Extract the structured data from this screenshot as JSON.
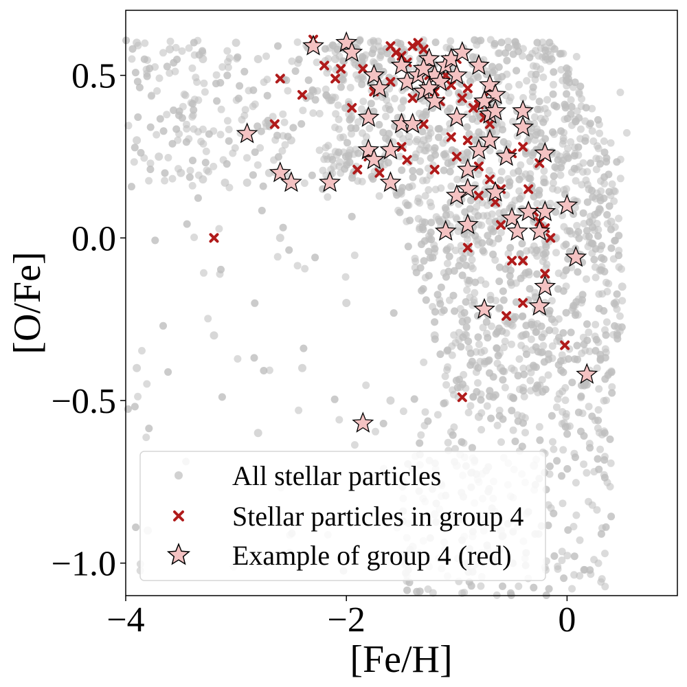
{
  "chart_data": {
    "type": "scatter",
    "title": "",
    "xlabel": "[Fe/H]",
    "ylabel": "[O/Fe]",
    "xlim": [
      -4,
      1
    ],
    "ylim": [
      -1.1,
      0.7
    ],
    "x_ticks": [
      {
        "value": -4,
        "label": "−4"
      },
      {
        "value": -2,
        "label": "−2"
      },
      {
        "value": 0,
        "label": "0"
      }
    ],
    "y_ticks": [
      {
        "value": 0.5,
        "label": "0.5"
      },
      {
        "value": 0.0,
        "label": "0.0"
      },
      {
        "value": -0.5,
        "label": "−0.5"
      },
      {
        "value": -1.0,
        "label": "−1.0"
      }
    ],
    "grid": false,
    "legend_position": "lower-left",
    "colors": {
      "background_points": "#bdbdbd",
      "group_points": "#b01b1b",
      "example_star_fill": "#f4c2c2",
      "example_star_edge": "#000000"
    },
    "series": [
      {
        "name": "All stellar particles",
        "marker": "circle",
        "color": "#bdbdbd",
        "representative_points": [
          [
            -3.9,
            0.6
          ],
          [
            -3.6,
            0.58
          ],
          [
            -3.3,
            0.55
          ],
          [
            -3.0,
            0.6
          ],
          [
            -2.8,
            0.55
          ],
          [
            -3.9,
            0.3
          ],
          [
            -3.7,
            0.25
          ],
          [
            -3.5,
            0.2
          ],
          [
            -3.3,
            0.18
          ],
          [
            -3.1,
            0.17
          ],
          [
            -2.9,
            0.17
          ],
          [
            -2.7,
            0.2
          ],
          [
            -2.5,
            0.3
          ],
          [
            -2.3,
            0.45
          ],
          [
            -2.1,
            0.55
          ],
          [
            -1.9,
            0.6
          ],
          [
            -1.7,
            0.5
          ],
          [
            -1.5,
            0.4
          ],
          [
            -1.3,
            0.3
          ],
          [
            -1.1,
            0.25
          ],
          [
            -0.9,
            0.2
          ],
          [
            -0.7,
            0.15
          ],
          [
            -0.5,
            0.1
          ],
          [
            -0.3,
            0.05
          ],
          [
            -0.1,
            0.0
          ],
          [
            0.1,
            -0.05
          ],
          [
            0.3,
            -0.1
          ],
          [
            0.4,
            0.05
          ],
          [
            0.2,
            0.15
          ],
          [
            0.0,
            0.25
          ],
          [
            -0.2,
            -0.2
          ],
          [
            -0.4,
            -0.3
          ],
          [
            -0.6,
            -0.4
          ],
          [
            -0.8,
            -0.55
          ],
          [
            -1.0,
            -0.7
          ],
          [
            -1.2,
            -0.85
          ],
          [
            -1.4,
            -0.95
          ],
          [
            -0.9,
            -1.0
          ],
          [
            -0.6,
            -0.9
          ],
          [
            -0.3,
            -0.7
          ],
          [
            -2.0,
            -0.2
          ],
          [
            -2.4,
            -0.4
          ],
          [
            -2.8,
            -0.6
          ],
          [
            -3.2,
            -0.3
          ],
          [
            -3.9,
            -0.4
          ],
          [
            -3.8,
            -0.9
          ],
          [
            -1.6,
            -0.5
          ],
          [
            -1.2,
            -0.3
          ],
          [
            0.5,
            -0.15
          ],
          [
            -2.6,
            0.0
          ]
        ]
      },
      {
        "name": "Stellar particles in group 4",
        "marker": "x",
        "color": "#b01b1b",
        "points": [
          [
            -3.2,
            0.0
          ],
          [
            -2.65,
            0.35
          ],
          [
            -2.6,
            0.49
          ],
          [
            -2.4,
            0.44
          ],
          [
            -2.3,
            0.61
          ],
          [
            -2.2,
            0.53
          ],
          [
            -2.1,
            0.49
          ],
          [
            -2.05,
            0.52
          ],
          [
            -1.95,
            0.4
          ],
          [
            -1.85,
            0.52
          ],
          [
            -1.75,
            0.45
          ],
          [
            -1.6,
            0.59
          ],
          [
            -1.55,
            0.57
          ],
          [
            -1.5,
            0.56
          ],
          [
            -1.45,
            0.54
          ],
          [
            -1.4,
            0.59
          ],
          [
            -1.35,
            0.6
          ],
          [
            -1.3,
            0.58
          ],
          [
            -1.25,
            0.5
          ],
          [
            -1.2,
            0.45
          ],
          [
            -1.15,
            0.42
          ],
          [
            -1.1,
            0.5
          ],
          [
            -1.05,
            0.47
          ],
          [
            -1.0,
            0.55
          ],
          [
            -0.95,
            0.43
          ],
          [
            -0.9,
            0.46
          ],
          [
            -0.85,
            0.4
          ],
          [
            -0.8,
            0.41
          ],
          [
            -0.75,
            0.37
          ],
          [
            -0.7,
            0.35
          ],
          [
            -1.9,
            0.21
          ],
          [
            -1.8,
            0.25
          ],
          [
            -1.7,
            0.2
          ],
          [
            -1.5,
            0.28
          ],
          [
            -1.45,
            0.24
          ],
          [
            -1.2,
            0.21
          ],
          [
            -1.0,
            0.25
          ],
          [
            -0.9,
            0.3
          ],
          [
            -0.8,
            0.22
          ],
          [
            -0.7,
            0.18
          ],
          [
            -0.6,
            0.15
          ],
          [
            -0.5,
            0.26
          ],
          [
            -0.4,
            0.28
          ],
          [
            -0.35,
            0.15
          ],
          [
            -0.3,
            0.08
          ],
          [
            -0.25,
            0.05
          ],
          [
            -0.2,
            0.03
          ],
          [
            -0.15,
            0.0
          ],
          [
            -0.5,
            -0.07
          ],
          [
            -0.4,
            -0.07
          ],
          [
            -0.9,
            -0.03
          ],
          [
            -0.55,
            -0.24
          ],
          [
            -0.4,
            -0.2
          ],
          [
            -0.2,
            -0.11
          ],
          [
            -0.02,
            -0.33
          ],
          [
            -0.95,
            -0.49
          ],
          [
            -1.6,
            0.48
          ],
          [
            -1.4,
            0.43
          ],
          [
            -0.65,
            0.11
          ],
          [
            -0.8,
            0.13
          ],
          [
            -0.6,
            0.04
          ],
          [
            -1.05,
            0.31
          ],
          [
            -0.7,
            0.45
          ],
          [
            -1.3,
            0.35
          ],
          [
            -0.25,
            0.23
          ]
        ]
      },
      {
        "name": "Example of group 4 (red)",
        "marker": "star",
        "color": "#f4c2c2",
        "points": [
          [
            -2.3,
            0.59
          ],
          [
            -2.0,
            0.6
          ],
          [
            -1.95,
            0.57
          ],
          [
            -2.9,
            0.32
          ],
          [
            -2.6,
            0.2
          ],
          [
            -2.5,
            0.17
          ],
          [
            -2.15,
            0.17
          ],
          [
            -1.8,
            0.37
          ],
          [
            -1.75,
            0.5
          ],
          [
            -1.7,
            0.46
          ],
          [
            -1.8,
            0.27
          ],
          [
            -1.75,
            0.24
          ],
          [
            -1.6,
            0.27
          ],
          [
            -1.6,
            0.17
          ],
          [
            -1.5,
            0.35
          ],
          [
            -1.4,
            0.35
          ],
          [
            -1.5,
            0.53
          ],
          [
            -1.45,
            0.48
          ],
          [
            -1.35,
            0.5
          ],
          [
            -1.3,
            0.45
          ],
          [
            -1.25,
            0.55
          ],
          [
            -1.2,
            0.5
          ],
          [
            -1.15,
            0.48
          ],
          [
            -1.1,
            0.53
          ],
          [
            -1.05,
            0.55
          ],
          [
            -1.0,
            0.5
          ],
          [
            -0.95,
            0.57
          ],
          [
            -1.25,
            0.46
          ],
          [
            -1.3,
            0.52
          ],
          [
            -1.2,
            0.42
          ],
          [
            -1.0,
            0.37
          ],
          [
            -0.8,
            0.53
          ],
          [
            -0.7,
            0.47
          ],
          [
            -0.65,
            0.44
          ],
          [
            -0.75,
            0.42
          ],
          [
            -0.7,
            0.38
          ],
          [
            -0.65,
            0.39
          ],
          [
            -0.4,
            0.39
          ],
          [
            -0.4,
            0.34
          ],
          [
            -0.7,
            0.3
          ],
          [
            -0.8,
            0.27
          ],
          [
            -0.55,
            0.25
          ],
          [
            -0.2,
            0.26
          ],
          [
            -0.9,
            0.21
          ],
          [
            -0.9,
            0.15
          ],
          [
            -1.0,
            0.13
          ],
          [
            -0.65,
            0.14
          ],
          [
            -1.1,
            0.02
          ],
          [
            -0.9,
            0.04
          ],
          [
            -0.5,
            0.06
          ],
          [
            -0.45,
            0.02
          ],
          [
            -0.35,
            0.08
          ],
          [
            -0.2,
            0.08
          ],
          [
            -0.25,
            0.02
          ],
          [
            0.0,
            0.1
          ],
          [
            0.08,
            -0.06
          ],
          [
            -0.2,
            -0.15
          ],
          [
            -0.75,
            -0.22
          ],
          [
            -0.25,
            -0.21
          ],
          [
            0.18,
            -0.42
          ],
          [
            -1.85,
            -0.57
          ]
        ]
      }
    ]
  }
}
